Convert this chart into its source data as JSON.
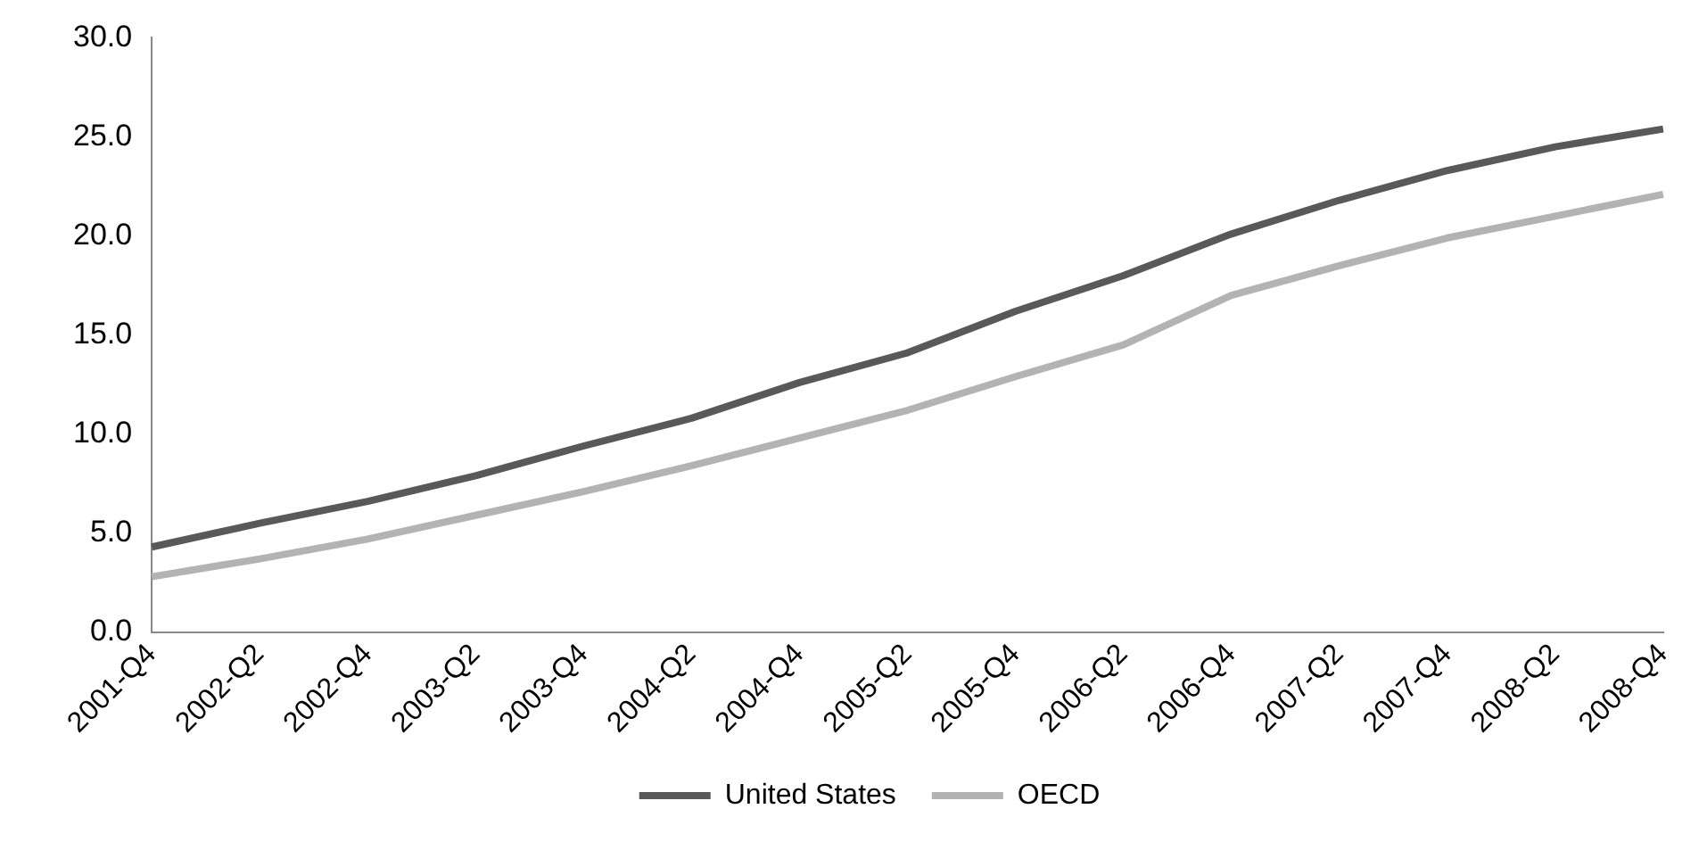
{
  "chart_data": {
    "type": "line",
    "categories": [
      "2001-Q4",
      "2002-Q2",
      "2002-Q4",
      "2003-Q2",
      "2003-Q4",
      "2004-Q2",
      "2004-Q4",
      "2005-Q2",
      "2005-Q4",
      "2006-Q2",
      "2006-Q4",
      "2007-Q2",
      "2007-Q4",
      "2008-Q2",
      "2008-Q4"
    ],
    "series": [
      {
        "name": "United States",
        "color": "#595959",
        "values": [
          4.3,
          5.5,
          6.6,
          7.9,
          9.4,
          10.8,
          12.6,
          14.1,
          16.2,
          18.0,
          20.1,
          21.8,
          23.3,
          24.5,
          25.4
        ]
      },
      {
        "name": "OECD",
        "color": "#b3b3b3",
        "values": [
          2.8,
          3.7,
          4.7,
          5.9,
          7.1,
          8.4,
          9.8,
          11.2,
          12.9,
          14.5,
          17.0,
          18.5,
          19.9,
          21.0,
          22.1
        ]
      }
    ],
    "ylim": [
      0,
      30
    ],
    "yticks": [
      {
        "value": 0,
        "label": "0.0"
      },
      {
        "value": 5,
        "label": "5.0"
      },
      {
        "value": 10,
        "label": "10.0"
      },
      {
        "value": 15,
        "label": "15.0"
      },
      {
        "value": 20,
        "label": "20.0"
      },
      {
        "value": 25,
        "label": "25.0"
      },
      {
        "value": 30,
        "label": "30.0"
      }
    ],
    "grid": false,
    "legend": "bottom",
    "marker": "none",
    "line_style": "solid"
  }
}
